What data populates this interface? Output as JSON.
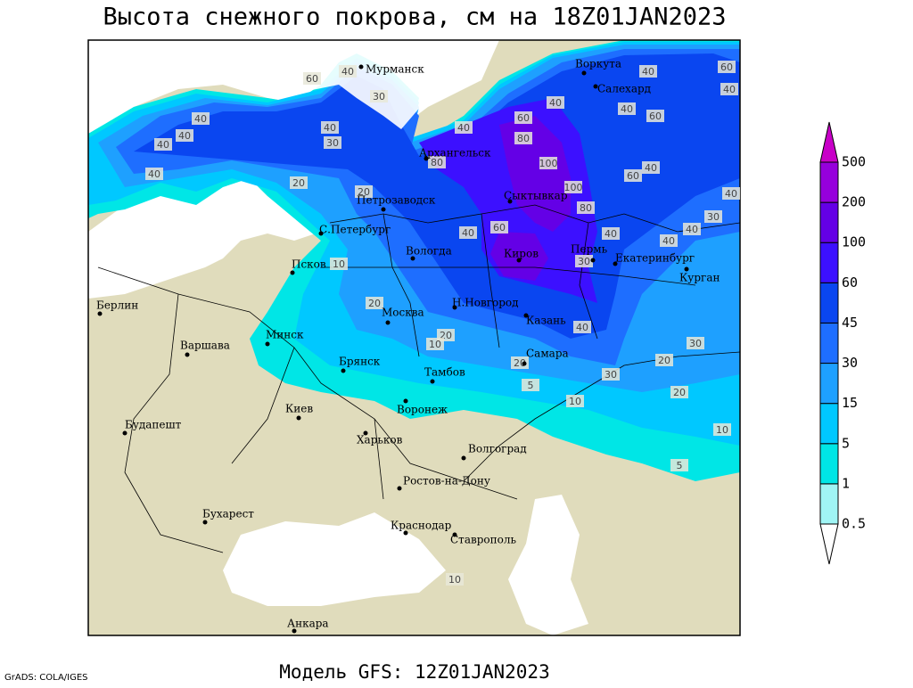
{
  "title": "Высота снежного покрова, см на 18Z01JAN2023",
  "footer": "Модель GFS: 12Z01JAN2023",
  "credit": "GrADS: COLA/IGES",
  "colorbar": {
    "levels": [
      0.5,
      1,
      5,
      15,
      30,
      45,
      60,
      100,
      200,
      500
    ],
    "colors": [
      "#ffffff",
      "#a0f5f5",
      "#00e6e6",
      "#00c8ff",
      "#1ea0ff",
      "#1e6eff",
      "#0a46f0",
      "#3c10ff",
      "#6400e6",
      "#9600dc",
      "#c800c8"
    ]
  },
  "cities": [
    "Мурманск",
    "Воркута",
    "Салехард",
    "Архангельск",
    "Сыктывкар",
    "Петрозаводск",
    "С.Петербург",
    "Вологда",
    "Киров",
    "Пермь",
    "Екатеринбург",
    "Курган",
    "Псков",
    "Н.Новгород",
    "Казань",
    "Москва",
    "Берлин",
    "Варшава",
    "Минск",
    "Брянск",
    "Тамбов",
    "Самара",
    "Воронеж",
    "Киев",
    "Будапешт",
    "Харьков",
    "Волгоград",
    "Ростов-на-Дону",
    "Бухарест",
    "Краснодар",
    "Ставрополь",
    "Анкара"
  ],
  "contour_labels": [
    60,
    30,
    40,
    40,
    60,
    80,
    100,
    80,
    40,
    40,
    60,
    40,
    40,
    60,
    40,
    60,
    100,
    80,
    40,
    40,
    40,
    30,
    40,
    30,
    20,
    20,
    10,
    10,
    30,
    40,
    30,
    60,
    40,
    20,
    20,
    10,
    20,
    5,
    20,
    40,
    30,
    20,
    40,
    40,
    40,
    40,
    10,
    10,
    5
  ]
}
